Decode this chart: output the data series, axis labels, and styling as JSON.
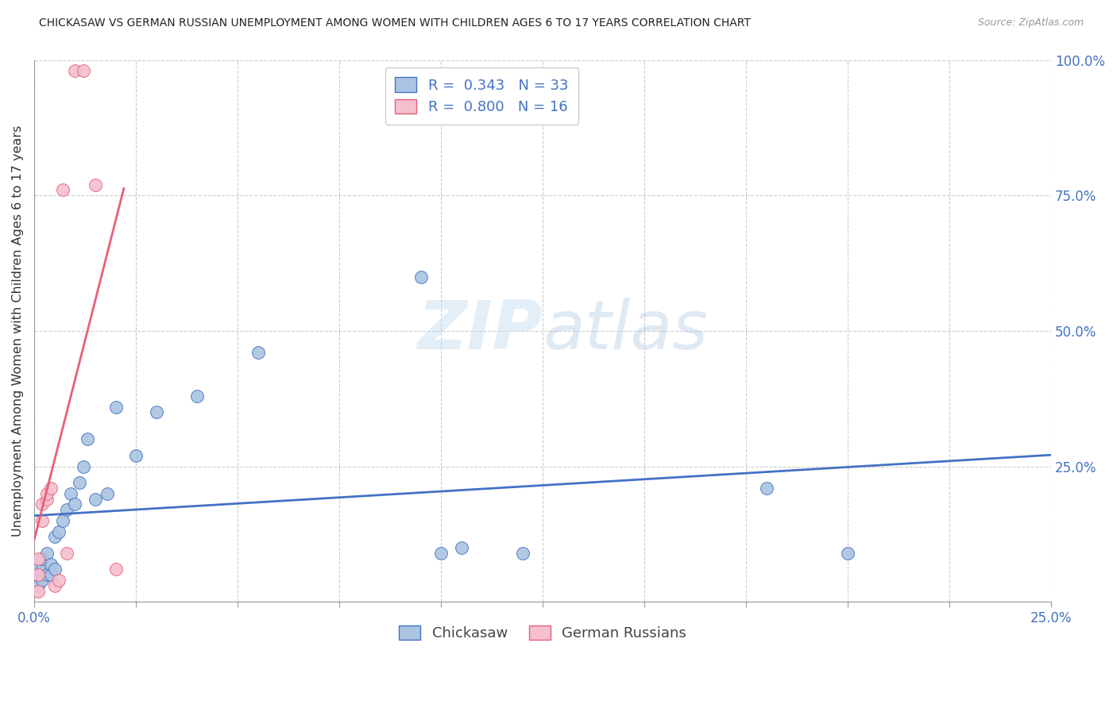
{
  "title": "CHICKASAW VS GERMAN RUSSIAN UNEMPLOYMENT AMONG WOMEN WITH CHILDREN AGES 6 TO 17 YEARS CORRELATION CHART",
  "source": "Source: ZipAtlas.com",
  "ylabel": "Unemployment Among Women with Children Ages 6 to 17 years",
  "legend_label1": "Chickasaw",
  "legend_label2": "German Russians",
  "r1": 0.343,
  "n1": 33,
  "r2": 0.8,
  "n2": 16,
  "color1": "#aac4e2",
  "color2": "#f5bfce",
  "line_color1": "#4472c4",
  "line_color2": "#e8607a",
  "text_color_blue": "#4472c4",
  "watermark": "ZIPatlas",
  "xlim": [
    0.0,
    0.25
  ],
  "ylim": [
    0.0,
    1.0
  ],
  "x_ticks": [
    0.0,
    0.025,
    0.05,
    0.075,
    0.1,
    0.125,
    0.15,
    0.175,
    0.2,
    0.225,
    0.25
  ],
  "x_tick_labels": [
    "0.0%",
    "",
    "",
    "",
    "",
    "",
    "",
    "",
    "",
    "",
    "25.0%"
  ],
  "y_ticks": [
    0.0,
    0.25,
    0.5,
    0.75,
    1.0
  ],
  "y_tick_labels": [
    "",
    "25.0%",
    "50.0%",
    "75.0%",
    "100.0%"
  ],
  "chickasaw_x": [
    0.001,
    0.001,
    0.001,
    0.002,
    0.002,
    0.002,
    0.003,
    0.003,
    0.004,
    0.004,
    0.005,
    0.005,
    0.006,
    0.007,
    0.008,
    0.009,
    0.01,
    0.011,
    0.012,
    0.013,
    0.015,
    0.018,
    0.02,
    0.025,
    0.03,
    0.04,
    0.055,
    0.095,
    0.1,
    0.105,
    0.12,
    0.18,
    0.2
  ],
  "chickasaw_y": [
    0.03,
    0.05,
    0.06,
    0.04,
    0.06,
    0.08,
    0.05,
    0.09,
    0.05,
    0.07,
    0.06,
    0.12,
    0.13,
    0.15,
    0.17,
    0.2,
    0.18,
    0.22,
    0.25,
    0.3,
    0.19,
    0.2,
    0.36,
    0.27,
    0.35,
    0.38,
    0.46,
    0.6,
    0.09,
    0.1,
    0.09,
    0.21,
    0.09
  ],
  "german_x": [
    0.001,
    0.001,
    0.001,
    0.002,
    0.002,
    0.003,
    0.003,
    0.004,
    0.005,
    0.006,
    0.007,
    0.008,
    0.01,
    0.012,
    0.015,
    0.02
  ],
  "german_y": [
    0.02,
    0.05,
    0.08,
    0.15,
    0.18,
    0.19,
    0.2,
    0.21,
    0.03,
    0.04,
    0.76,
    0.09,
    0.98,
    0.98,
    0.77,
    0.06
  ]
}
